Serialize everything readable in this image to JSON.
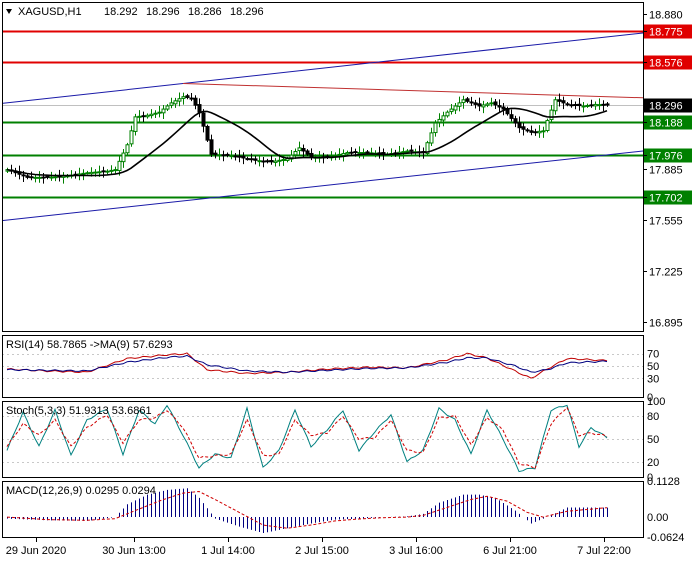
{
  "chart_data": [
    {
      "type": "candlestick",
      "title": "XAGUSD,H1",
      "ohlc_header": {
        "open": "18.292",
        "high": "18.296",
        "low": "18.286",
        "close": "18.296"
      },
      "y_ticks": [
        "18.880",
        "18.775",
        "18.576",
        "18.296",
        "18.188",
        "17.976",
        "17.885",
        "17.702",
        "17.555",
        "17.225",
        "16.895"
      ],
      "ylim": [
        16.84,
        18.96
      ],
      "x_tick_labels": [
        "29 Jun 2020",
        "30 Jun 13:00",
        "1 Jul 14:00",
        "2 Jul 15:00",
        "3 Jul 16:00",
        "6 Jul 21:00",
        "7 Jul 22:00"
      ],
      "current_price": {
        "value": 18.296,
        "label": "18.296"
      },
      "horizontal_levels": [
        {
          "value": 18.775,
          "label": "18.775",
          "color": "#e00000"
        },
        {
          "value": 18.576,
          "label": "18.576",
          "color": "#e00000"
        },
        {
          "value": 18.188,
          "label": "18.188",
          "color": "#008000"
        },
        {
          "value": 17.976,
          "label": "17.976",
          "color": "#008000"
        },
        {
          "value": 17.702,
          "label": "17.702",
          "color": "#008000"
        }
      ],
      "trend_lines": [
        {
          "name": "channel-upper",
          "color": "#1a1aa8",
          "from": {
            "bar": 0,
            "value": 18.31
          },
          "to": {
            "bar": 150,
            "value": 18.735
          }
        },
        {
          "name": "channel-lower",
          "color": "#1a1aa8",
          "from": {
            "bar": 0,
            "value": 17.555
          },
          "to": {
            "bar": 150,
            "value": 17.975
          }
        },
        {
          "name": "resistance",
          "color": "#c03030",
          "from": {
            "bar": 44,
            "value": 18.435
          },
          "to": {
            "bar": 150,
            "value": 18.35
          }
        }
      ],
      "moving_average_color": "#000000",
      "candles_up_color": "#008000",
      "candles_down_color": "#000000",
      "close_path": [
        [
          0,
          17.88
        ],
        [
          5,
          17.83
        ],
        [
          10,
          17.83
        ],
        [
          15,
          17.84
        ],
        [
          20,
          17.86
        ],
        [
          25,
          17.87
        ],
        [
          27,
          17.88
        ],
        [
          30,
          18.04
        ],
        [
          32,
          18.22
        ],
        [
          35,
          18.23
        ],
        [
          38,
          18.25
        ],
        [
          41,
          18.31
        ],
        [
          44,
          18.35
        ],
        [
          46,
          18.34
        ],
        [
          48,
          18.25
        ],
        [
          51,
          17.98
        ],
        [
          56,
          17.97
        ],
        [
          62,
          17.94
        ],
        [
          66,
          17.93
        ],
        [
          70,
          17.95
        ],
        [
          73,
          18.02
        ],
        [
          76,
          17.96
        ],
        [
          80,
          17.96
        ],
        [
          85,
          17.99
        ],
        [
          90,
          17.99
        ],
        [
          95,
          17.98
        ],
        [
          100,
          18.0
        ],
        [
          104,
          17.99
        ],
        [
          107,
          18.18
        ],
        [
          110,
          18.25
        ],
        [
          114,
          18.33
        ],
        [
          118,
          18.29
        ],
        [
          121,
          18.31
        ],
        [
          124,
          18.27
        ],
        [
          128,
          18.15
        ],
        [
          131,
          18.12
        ],
        [
          134,
          18.13
        ],
        [
          137,
          18.33
        ],
        [
          140,
          18.3
        ],
        [
          144,
          18.29
        ],
        [
          147,
          18.3
        ],
        [
          150,
          18.296
        ]
      ]
    },
    {
      "type": "line",
      "title": "RSI(14) 58.7865 ->MA(9) 57.6293",
      "ylim": [
        0,
        100
      ],
      "y_ticks": [
        "70",
        "50",
        "30",
        "0"
      ],
      "levels": [
        70,
        50,
        30
      ],
      "series": [
        {
          "name": "RSI(14)",
          "color": "#c00000",
          "points": [
            [
              0,
              45
            ],
            [
              10,
              42
            ],
            [
              20,
              40
            ],
            [
              30,
              62
            ],
            [
              40,
              68
            ],
            [
              45,
              70
            ],
            [
              50,
              44
            ],
            [
              60,
              38
            ],
            [
              70,
              40
            ],
            [
              80,
              45
            ],
            [
              90,
              48
            ],
            [
              100,
              47
            ],
            [
              110,
              60
            ],
            [
              115,
              70
            ],
            [
              120,
              63
            ],
            [
              127,
              42
            ],
            [
              131,
              30
            ],
            [
              135,
              45
            ],
            [
              140,
              62
            ],
            [
              150,
              58.79
            ]
          ]
        },
        {
          "name": "MA(9)",
          "color": "#000080",
          "points": [
            [
              0,
              44
            ],
            [
              10,
              43
            ],
            [
              20,
              42
            ],
            [
              30,
              56
            ],
            [
              40,
              64
            ],
            [
              45,
              66
            ],
            [
              50,
              52
            ],
            [
              60,
              42
            ],
            [
              70,
              40
            ],
            [
              80,
              43
            ],
            [
              90,
              46
            ],
            [
              100,
              47
            ],
            [
              110,
              56
            ],
            [
              115,
              63
            ],
            [
              120,
              63
            ],
            [
              127,
              50
            ],
            [
              131,
              40
            ],
            [
              135,
              44
            ],
            [
              140,
              55
            ],
            [
              150,
              57.63
            ]
          ]
        }
      ]
    },
    {
      "type": "line",
      "title": "Stoch(5,3,3) 51.9313 53.6861",
      "ylim": [
        0,
        100
      ],
      "y_ticks": [
        "100",
        "80",
        "50",
        "20",
        "0"
      ],
      "levels": [
        80,
        50,
        20
      ],
      "series": [
        {
          "name": "Main",
          "color": "#008080",
          "points": [
            [
              0,
              35
            ],
            [
              4,
              85
            ],
            [
              8,
              40
            ],
            [
              12,
              88
            ],
            [
              16,
              28
            ],
            [
              20,
              75
            ],
            [
              25,
              90
            ],
            [
              29,
              30
            ],
            [
              33,
              88
            ],
            [
              37,
              70
            ],
            [
              40,
              95
            ],
            [
              44,
              55
            ],
            [
              48,
              12
            ],
            [
              52,
              30
            ],
            [
              56,
              25
            ],
            [
              60,
              90
            ],
            [
              64,
              12
            ],
            [
              68,
              35
            ],
            [
              72,
              88
            ],
            [
              76,
              40
            ],
            [
              80,
              62
            ],
            [
              84,
              88
            ],
            [
              88,
              35
            ],
            [
              92,
              60
            ],
            [
              96,
              82
            ],
            [
              100,
              20
            ],
            [
              104,
              35
            ],
            [
              108,
              90
            ],
            [
              112,
              75
            ],
            [
              116,
              30
            ],
            [
              120,
              88
            ],
            [
              124,
              50
            ],
            [
              128,
              8
            ],
            [
              132,
              12
            ],
            [
              136,
              88
            ],
            [
              140,
              95
            ],
            [
              143,
              40
            ],
            [
              146,
              65
            ],
            [
              150,
              51.93
            ]
          ]
        },
        {
          "name": "Signal",
          "color": "#d00000",
          "points": [
            [
              0,
              40
            ],
            [
              4,
              70
            ],
            [
              8,
              55
            ],
            [
              12,
              75
            ],
            [
              16,
              40
            ],
            [
              20,
              65
            ],
            [
              25,
              82
            ],
            [
              29,
              45
            ],
            [
              33,
              75
            ],
            [
              37,
              78
            ],
            [
              40,
              88
            ],
            [
              44,
              65
            ],
            [
              48,
              25
            ],
            [
              52,
              28
            ],
            [
              56,
              30
            ],
            [
              60,
              75
            ],
            [
              64,
              28
            ],
            [
              68,
              30
            ],
            [
              72,
              75
            ],
            [
              76,
              55
            ],
            [
              80,
              58
            ],
            [
              84,
              80
            ],
            [
              88,
              50
            ],
            [
              92,
              52
            ],
            [
              96,
              75
            ],
            [
              100,
              35
            ],
            [
              104,
              32
            ],
            [
              108,
              78
            ],
            [
              112,
              80
            ],
            [
              116,
              42
            ],
            [
              120,
              78
            ],
            [
              124,
              62
            ],
            [
              128,
              18
            ],
            [
              132,
              12
            ],
            [
              136,
              70
            ],
            [
              140,
              92
            ],
            [
              143,
              55
            ],
            [
              146,
              58
            ],
            [
              150,
              53.69
            ]
          ]
        }
      ]
    },
    {
      "type": "bar",
      "title": "MACD(12,26,9) 0.0295 0.0294",
      "ylim": [
        -0.0624,
        0.1128
      ],
      "y_ticks": [
        "0.1128",
        "0.00",
        "-0.0624"
      ],
      "series": [
        {
          "name": "MACD",
          "color": "#000080",
          "points": [
            [
              0,
              -0.005
            ],
            [
              10,
              -0.01
            ],
            [
              20,
              -0.012
            ],
            [
              27,
              0.0
            ],
            [
              30,
              0.04
            ],
            [
              35,
              0.07
            ],
            [
              40,
              0.085
            ],
            [
              45,
              0.09
            ],
            [
              48,
              0.06
            ],
            [
              52,
              -0.005
            ],
            [
              58,
              -0.03
            ],
            [
              64,
              -0.05
            ],
            [
              70,
              -0.035
            ],
            [
              76,
              -0.02
            ],
            [
              82,
              -0.008
            ],
            [
              88,
              -0.005
            ],
            [
              94,
              0.0
            ],
            [
              100,
              0.002
            ],
            [
              104,
              0.01
            ],
            [
              108,
              0.045
            ],
            [
              114,
              0.07
            ],
            [
              118,
              0.07
            ],
            [
              122,
              0.06
            ],
            [
              127,
              0.02
            ],
            [
              131,
              -0.02
            ],
            [
              135,
              0.0
            ],
            [
              140,
              0.03
            ],
            [
              150,
              0.0295
            ]
          ]
        },
        {
          "name": "Signal",
          "color": "#d00000",
          "points": [
            [
              0,
              0.0
            ],
            [
              10,
              -0.008
            ],
            [
              20,
              -0.01
            ],
            [
              27,
              -0.005
            ],
            [
              32,
              0.02
            ],
            [
              38,
              0.05
            ],
            [
              44,
              0.075
            ],
            [
              48,
              0.08
            ],
            [
              52,
              0.055
            ],
            [
              58,
              0.015
            ],
            [
              64,
              -0.025
            ],
            [
              70,
              -0.035
            ],
            [
              76,
              -0.025
            ],
            [
              82,
              -0.012
            ],
            [
              88,
              -0.006
            ],
            [
              94,
              -0.002
            ],
            [
              100,
              0.0
            ],
            [
              104,
              0.005
            ],
            [
              110,
              0.03
            ],
            [
              116,
              0.055
            ],
            [
              120,
              0.065
            ],
            [
              125,
              0.05
            ],
            [
              130,
              0.015
            ],
            [
              134,
              0.0
            ],
            [
              140,
              0.018
            ],
            [
              150,
              0.0294
            ]
          ]
        }
      ]
    }
  ]
}
